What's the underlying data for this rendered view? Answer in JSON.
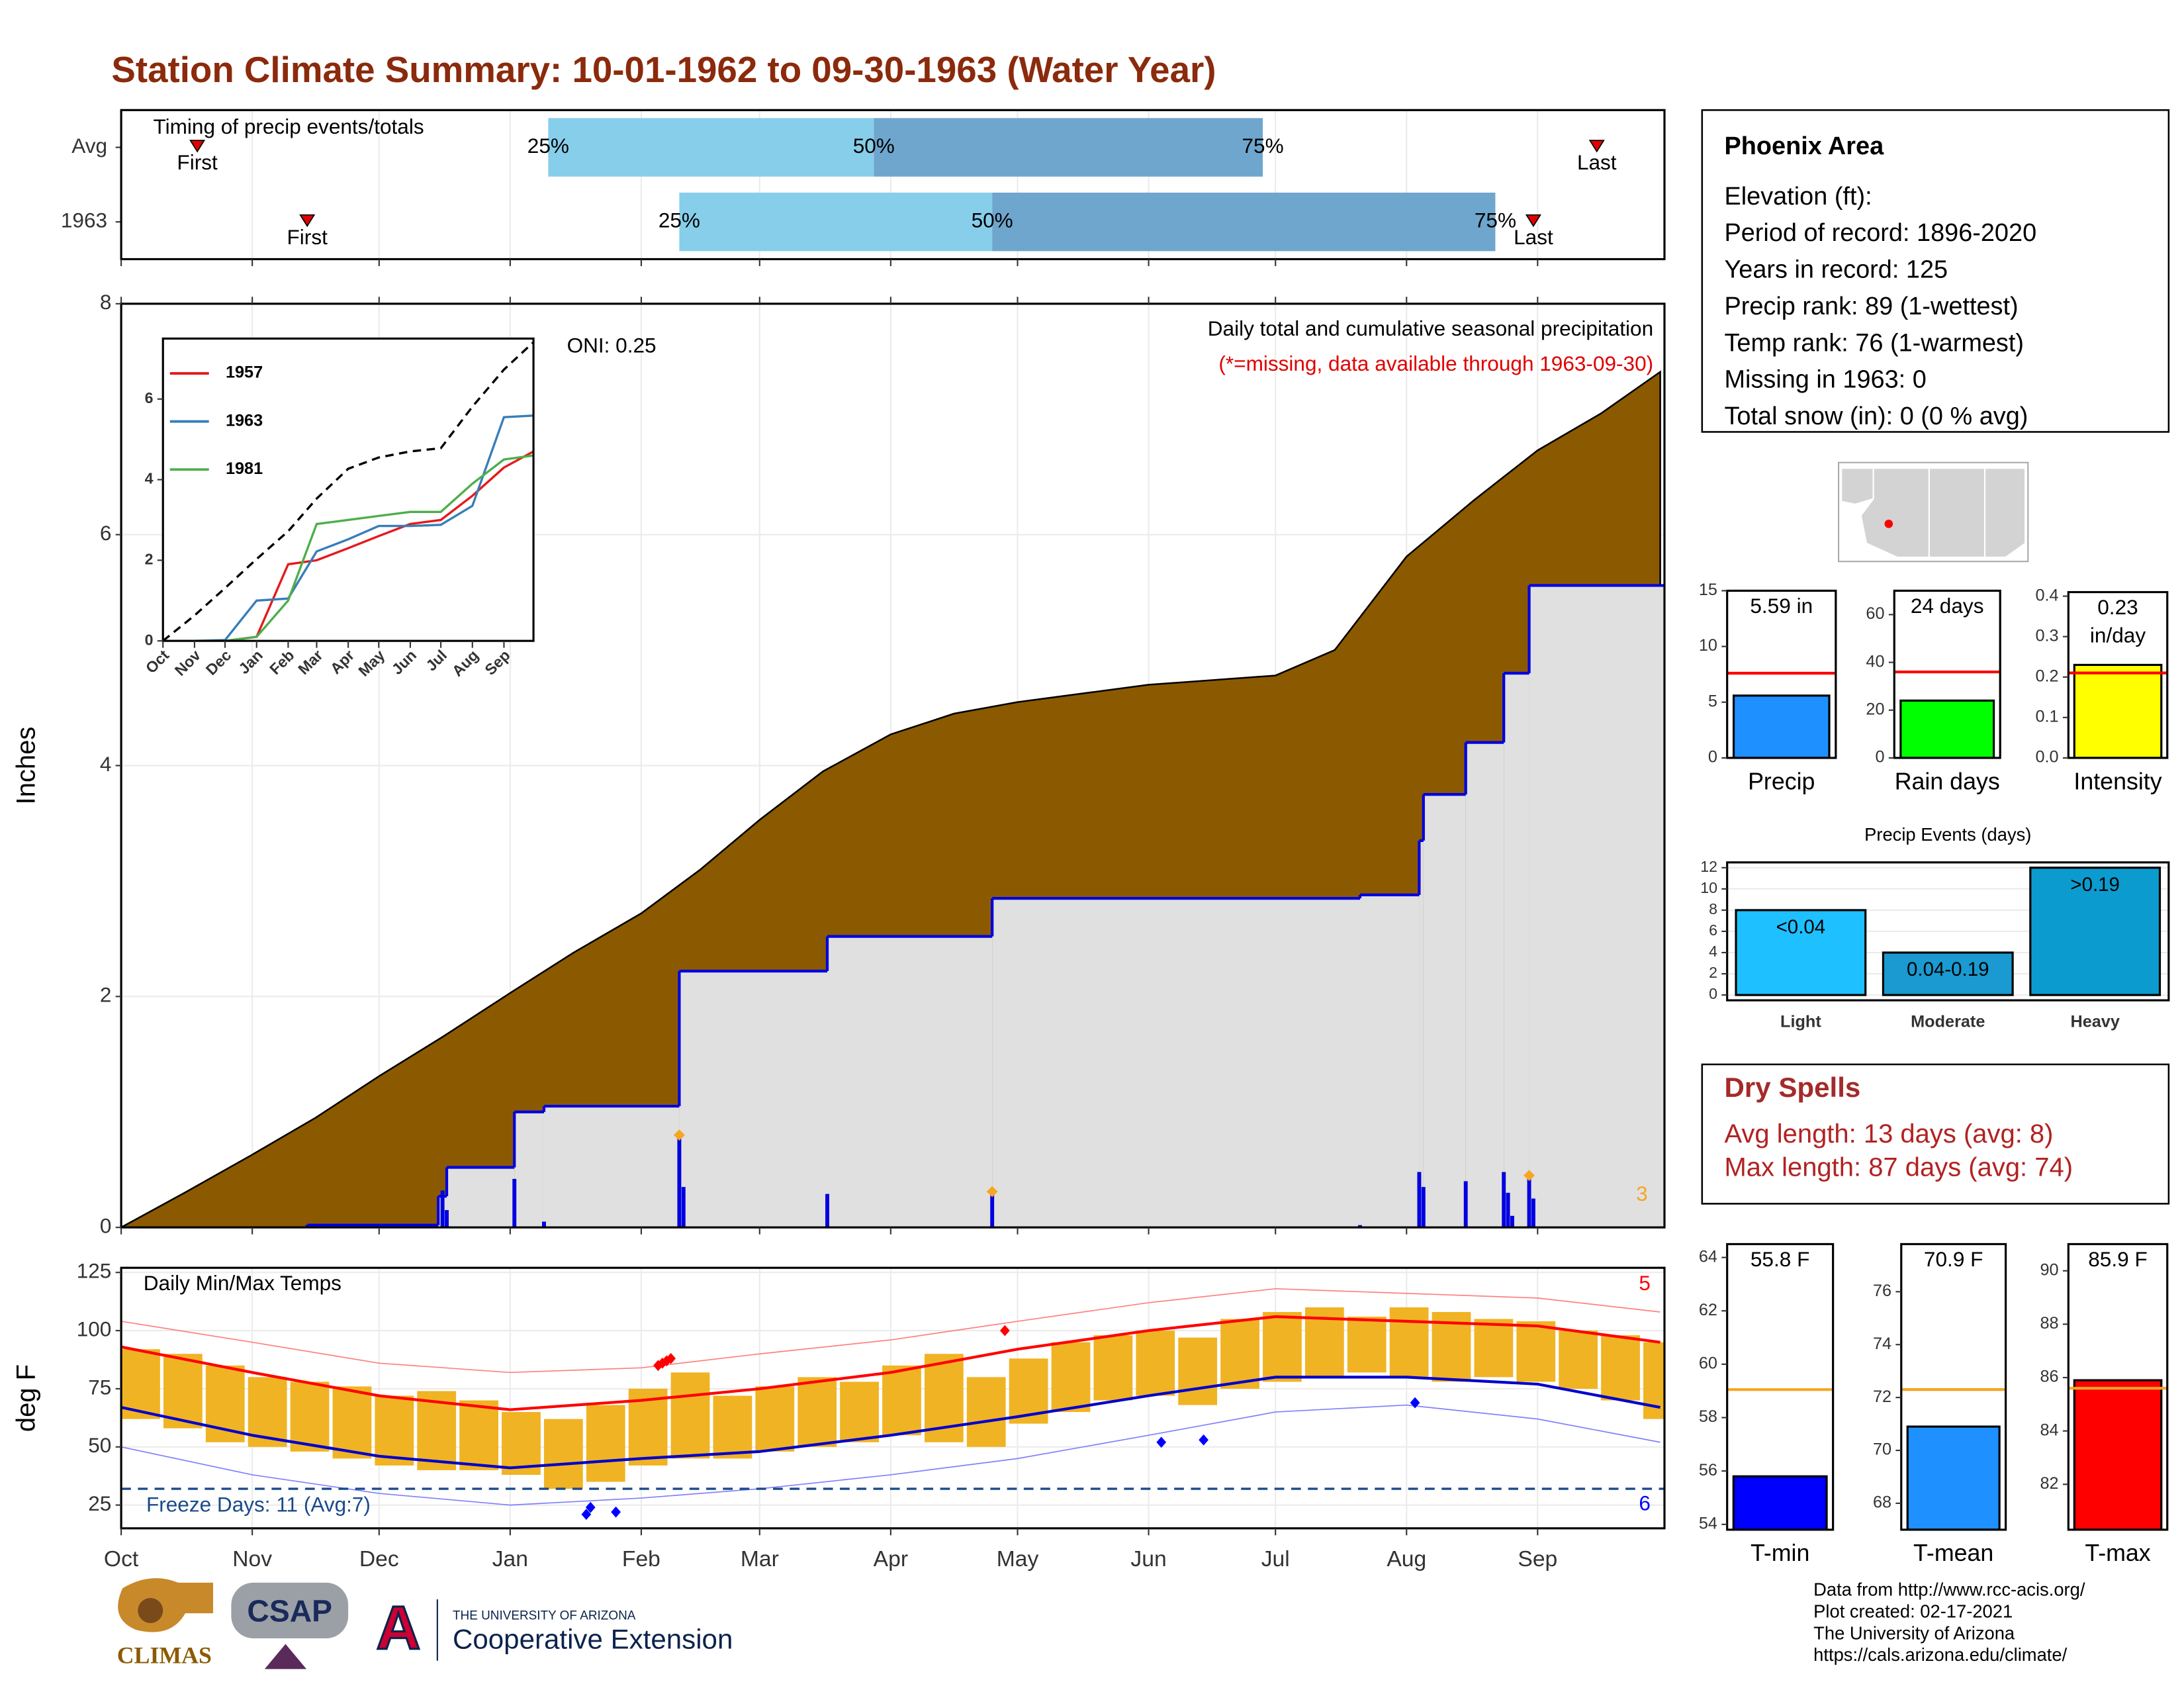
{
  "title": "Station Climate Summary: 10-01-1962 to 09-30-1963 (Water Year)",
  "info": {
    "station": "Phoenix Area",
    "lines": [
      "Elevation (ft):",
      "Period of record: 1896-2020",
      "Years in record: 125",
      "Precip rank: 89 (1-wettest)",
      "Temp rank: 76 (1-warmest)",
      "Missing in 1963: 0",
      "Total snow (in): 0 (0 % avg)"
    ]
  },
  "dry_spells": {
    "title": "Dry Spells",
    "lines": [
      "Avg length: 13 days (avg: 8)",
      "Max length: 87 days (avg: 74)"
    ]
  },
  "credits": [
    "Data from http://www.rcc-acis.org/",
    "Plot created: 02-17-2021",
    "The University of Arizona",
    "https://cals.arizona.edu/climate/"
  ],
  "logos": {
    "climas": "CLIMAS",
    "csap": "CSAP",
    "university": "THE UNIVERSITY OF ARIZONA",
    "extension": "Cooperative Extension"
  },
  "chart_data": [
    {
      "type": "timing",
      "annotation": "Timing of precip events/totals",
      "categories": [
        "Avg",
        "1963"
      ],
      "first": [
        18,
        44
      ],
      "q25": [
        101,
        132
      ],
      "q50": [
        178,
        206
      ],
      "q75": [
        270,
        325
      ],
      "last": [
        349,
        334
      ],
      "labels": {
        "first": "First",
        "q25": "25%",
        "q50": "50%",
        "q75": "75%",
        "last": "Last"
      },
      "colors": {
        "lower": "#87ceeb",
        "upper": "#6fa6cd",
        "marker": "#e00000"
      },
      "xlim": [
        0,
        365
      ],
      "xticks": [
        0,
        31,
        61,
        92,
        123,
        151,
        182,
        212,
        243,
        273,
        304,
        335
      ],
      "grid": true
    },
    {
      "type": "area",
      "title": "Daily total and cumulative seasonal precipitation",
      "note": "(*=missing, data available through 1963-09-30)",
      "annotation": "ONI: 0.25",
      "y_label": "Inches",
      "xlim": [
        0,
        365
      ],
      "xticks": [
        0,
        31,
        61,
        92,
        123,
        151,
        182,
        212,
        243,
        273,
        304,
        335
      ],
      "ylim": [
        0,
        8
      ],
      "yticks": [
        0,
        2,
        4,
        6,
        8
      ],
      "grid": true,
      "average": {
        "color": "#8b5a00",
        "x": [
          0,
          15,
          31,
          46,
          61,
          76,
          92,
          107,
          123,
          137,
          151,
          166,
          182,
          197,
          212,
          243,
          273,
          287,
          304,
          320,
          335,
          350,
          364
        ],
        "values": [
          0,
          0.3,
          0.63,
          0.95,
          1.31,
          1.65,
          2.03,
          2.38,
          2.72,
          3.1,
          3.53,
          3.95,
          4.27,
          4.45,
          4.55,
          4.7,
          4.78,
          5.0,
          5.81,
          6.3,
          6.73,
          7.05,
          7.41
        ]
      },
      "cumulative": {
        "color": "#0000e0",
        "fill": "#e0e0e0",
        "x": [
          44,
          75,
          77,
          93,
          100,
          132,
          167,
          206,
          293,
          307,
          308,
          318,
          327,
          333
        ],
        "values": [
          0.02,
          0.27,
          0.52,
          1.0,
          1.05,
          2.22,
          2.52,
          2.85,
          2.88,
          3.35,
          3.75,
          4.2,
          4.8,
          5.56
        ]
      },
      "daily": {
        "color": "#0000e0",
        "x": [
          44,
          76,
          77,
          93,
          100,
          132,
          133,
          167,
          206,
          293,
          307,
          308,
          318,
          327,
          328,
          329,
          333,
          334
        ],
        "values": [
          0.02,
          0.32,
          0.15,
          0.42,
          0.05,
          0.8,
          0.35,
          0.29,
          0.31,
          0.02,
          0.48,
          0.35,
          0.4,
          0.48,
          0.3,
          0.1,
          0.45,
          0.25
        ]
      },
      "top_events": {
        "color": "#f5a623",
        "x": [
          132,
          206,
          333
        ],
        "values": [
          0.8,
          0.31,
          0.45
        ],
        "count": 3
      }
    },
    {
      "type": "line",
      "legend": "upper left",
      "xlim": [
        0,
        364
      ],
      "xticks": [
        {
          "value": 0,
          "label": "Oct"
        },
        {
          "value": 31,
          "label": "Nov"
        },
        {
          "value": 61,
          "label": "Dec"
        },
        {
          "value": 92,
          "label": "Jan"
        },
        {
          "value": 123,
          "label": "Feb"
        },
        {
          "value": 151,
          "label": "Mar"
        },
        {
          "value": 182,
          "label": "Apr"
        },
        {
          "value": 212,
          "label": "May"
        },
        {
          "value": 243,
          "label": "Jun"
        },
        {
          "value": 273,
          "label": "Jul"
        },
        {
          "value": 304,
          "label": "Aug"
        },
        {
          "value": 335,
          "label": "Sep"
        }
      ],
      "ylim": [
        0,
        7.5
      ],
      "yticks": [
        0,
        2,
        4,
        6
      ],
      "x": [
        0,
        31,
        61,
        92,
        123,
        151,
        182,
        212,
        243,
        273,
        304,
        335,
        364
      ],
      "series": [
        {
          "name": "1957",
          "color": "#e41a1c",
          "values": [
            0,
            0,
            0,
            0.1,
            1.9,
            2.0,
            2.3,
            2.6,
            2.9,
            3.0,
            3.6,
            4.3,
            4.7
          ]
        },
        {
          "name": "1963",
          "color": "#377eb8",
          "values": [
            0,
            0,
            0.02,
            1.0,
            1.05,
            2.22,
            2.52,
            2.85,
            2.85,
            2.88,
            3.35,
            5.55,
            5.59
          ]
        },
        {
          "name": "1981",
          "color": "#4daf4a",
          "values": [
            0,
            0,
            0,
            0.1,
            1.0,
            2.9,
            3.0,
            3.1,
            3.2,
            3.2,
            3.9,
            4.5,
            4.6
          ]
        }
      ],
      "average": {
        "color": "#000000",
        "values": [
          0,
          0.63,
          1.31,
          2.03,
          2.72,
          3.53,
          4.27,
          4.55,
          4.7,
          4.78,
          5.81,
          6.73,
          7.41
        ]
      }
    },
    {
      "type": "temperature",
      "annotation": "Daily Min/Max Temps",
      "y_label": "deg F",
      "xlim": [
        0,
        365
      ],
      "xticks": [
        {
          "value": 0,
          "label": "Oct"
        },
        {
          "value": 31,
          "label": "Nov"
        },
        {
          "value": 61,
          "label": "Dec"
        },
        {
          "value": 92,
          "label": "Jan"
        },
        {
          "value": 123,
          "label": "Feb"
        },
        {
          "value": 151,
          "label": "Mar"
        },
        {
          "value": 182,
          "label": "Apr"
        },
        {
          "value": 212,
          "label": "May"
        },
        {
          "value": 243,
          "label": "Jun"
        },
        {
          "value": 273,
          "label": "Jul"
        },
        {
          "value": 304,
          "label": "Aug"
        },
        {
          "value": 335,
          "label": "Sep"
        }
      ],
      "ylim": [
        15,
        127
      ],
      "yticks": [
        25,
        50,
        75,
        100,
        125
      ],
      "grid": true,
      "bar_color": "#f0b323",
      "x": [
        0,
        10,
        20,
        30,
        40,
        50,
        60,
        70,
        80,
        90,
        100,
        110,
        120,
        130,
        140,
        150,
        160,
        170,
        180,
        190,
        200,
        210,
        220,
        230,
        240,
        250,
        260,
        270,
        280,
        290,
        300,
        310,
        320,
        330,
        340,
        350,
        360
      ],
      "daily_max": [
        92,
        90,
        85,
        80,
        78,
        76,
        72,
        74,
        70,
        65,
        62,
        68,
        75,
        82,
        72,
        76,
        80,
        78,
        85,
        90,
        80,
        88,
        95,
        98,
        100,
        97,
        105,
        108,
        110,
        106,
        110,
        108,
        105,
        104,
        100,
        98,
        95
      ],
      "daily_min": [
        62,
        58,
        52,
        50,
        48,
        45,
        42,
        40,
        40,
        38,
        32,
        35,
        42,
        45,
        45,
        48,
        50,
        52,
        55,
        52,
        50,
        60,
        65,
        70,
        72,
        68,
        75,
        78,
        80,
        82,
        80,
        78,
        80,
        78,
        75,
        70,
        62
      ],
      "normals": {
        "x": [
          0,
          31,
          61,
          92,
          123,
          151,
          182,
          212,
          243,
          273,
          304,
          335,
          364
        ],
        "max": [
          93,
          82,
          72,
          66,
          70,
          75,
          82,
          92,
          100,
          106,
          104,
          102,
          95
        ],
        "min": [
          67,
          55,
          46,
          41,
          45,
          48,
          55,
          63,
          72,
          80,
          80,
          77,
          67
        ],
        "max_color": "#ff0000",
        "min_color": "#0000cc"
      },
      "records": {
        "x": [
          0,
          31,
          61,
          92,
          123,
          151,
          182,
          212,
          243,
          273,
          304,
          335,
          364
        ],
        "max": [
          104,
          95,
          86,
          82,
          84,
          90,
          96,
          104,
          112,
          118,
          116,
          114,
          108
        ],
        "min": [
          50,
          38,
          30,
          25,
          28,
          32,
          38,
          45,
          55,
          65,
          68,
          62,
          52
        ],
        "max_color": "#ff8080",
        "min_color": "#8080ff"
      },
      "freeze": {
        "value": 32,
        "label": "Freeze Days: 11 (Avg:7)",
        "color": "#1a4a8a"
      },
      "record_highs": {
        "x": [
          127,
          128,
          129,
          130,
          209
        ],
        "values": [
          85,
          86,
          87,
          88,
          100
        ],
        "count": 5,
        "color": "#ff0000"
      },
      "record_lows": {
        "x": [
          110,
          111,
          117,
          246,
          256,
          306
        ],
        "values": [
          21,
          24,
          22,
          52,
          53,
          69
        ],
        "count": 6,
        "color": "#0000ff"
      }
    },
    {
      "type": "bar",
      "categories": [
        "Precip"
      ],
      "values": [
        5.59
      ],
      "value_labels": [
        "5.59 in"
      ],
      "color": "#1e90ff",
      "normal": 7.6,
      "normal_color": "#ff0000",
      "ylim": [
        0,
        15
      ],
      "yticks": [
        0,
        5,
        10,
        15
      ]
    },
    {
      "type": "bar",
      "categories": [
        "Rain days"
      ],
      "values": [
        24
      ],
      "value_labels": [
        "24 days"
      ],
      "color": "#00ff00",
      "normal": 36,
      "normal_color": "#ff0000",
      "ylim": [
        0,
        70
      ],
      "yticks": [
        0,
        20,
        40,
        60
      ]
    },
    {
      "type": "bar",
      "categories": [
        "Intensity"
      ],
      "values": [
        0.23
      ],
      "value_labels": [
        "0.23 in/day"
      ],
      "color": "#ffff00",
      "normal": 0.21,
      "normal_color": "#ff0000",
      "ylim": [
        0,
        0.41
      ],
      "yticks": [
        {
          "value": 0,
          "label": "0.0"
        },
        0.1,
        0.2,
        0.3,
        0.4
      ]
    },
    {
      "type": "bar",
      "title": "Precip Events (days)",
      "categories": [
        "Light",
        "Moderate",
        "Heavy"
      ],
      "values": [
        8,
        4,
        12
      ],
      "bin_labels": [
        "<0.04",
        "0.04-0.19",
        ">0.19"
      ],
      "colors": [
        "#1ec0ff",
        "#1a9ad0",
        "#0b9bcf"
      ],
      "ylim": [
        -0.5,
        12.5
      ],
      "yticks": [
        0,
        2,
        4,
        6,
        8,
        10,
        12
      ],
      "grid": true
    },
    {
      "type": "bar",
      "categories": [
        "T-min"
      ],
      "values": [
        55.8
      ],
      "value_labels": [
        "55.8 F"
      ],
      "color": "#0000ff",
      "normal": 59.05,
      "normal_color": "#f5a623",
      "ylim": [
        53.8,
        64.5
      ],
      "yticks": [
        54,
        56,
        58,
        60,
        62,
        64
      ]
    },
    {
      "type": "bar",
      "categories": [
        "T-mean"
      ],
      "values": [
        70.9
      ],
      "value_labels": [
        "70.9 F"
      ],
      "color": "#1e90ff",
      "normal": 72.3,
      "normal_color": "#f5a623",
      "ylim": [
        67.0,
        77.8
      ],
      "yticks": [
        68,
        70,
        72,
        74,
        76
      ]
    },
    {
      "type": "bar",
      "categories": [
        "T-max"
      ],
      "values": [
        85.9
      ],
      "value_labels": [
        "85.9 F"
      ],
      "color": "#ff0000",
      "normal": 85.6,
      "normal_color": "#f5a623",
      "ylim": [
        80.3,
        91.0
      ],
      "yticks": [
        82,
        84,
        86,
        88,
        90
      ]
    }
  ]
}
